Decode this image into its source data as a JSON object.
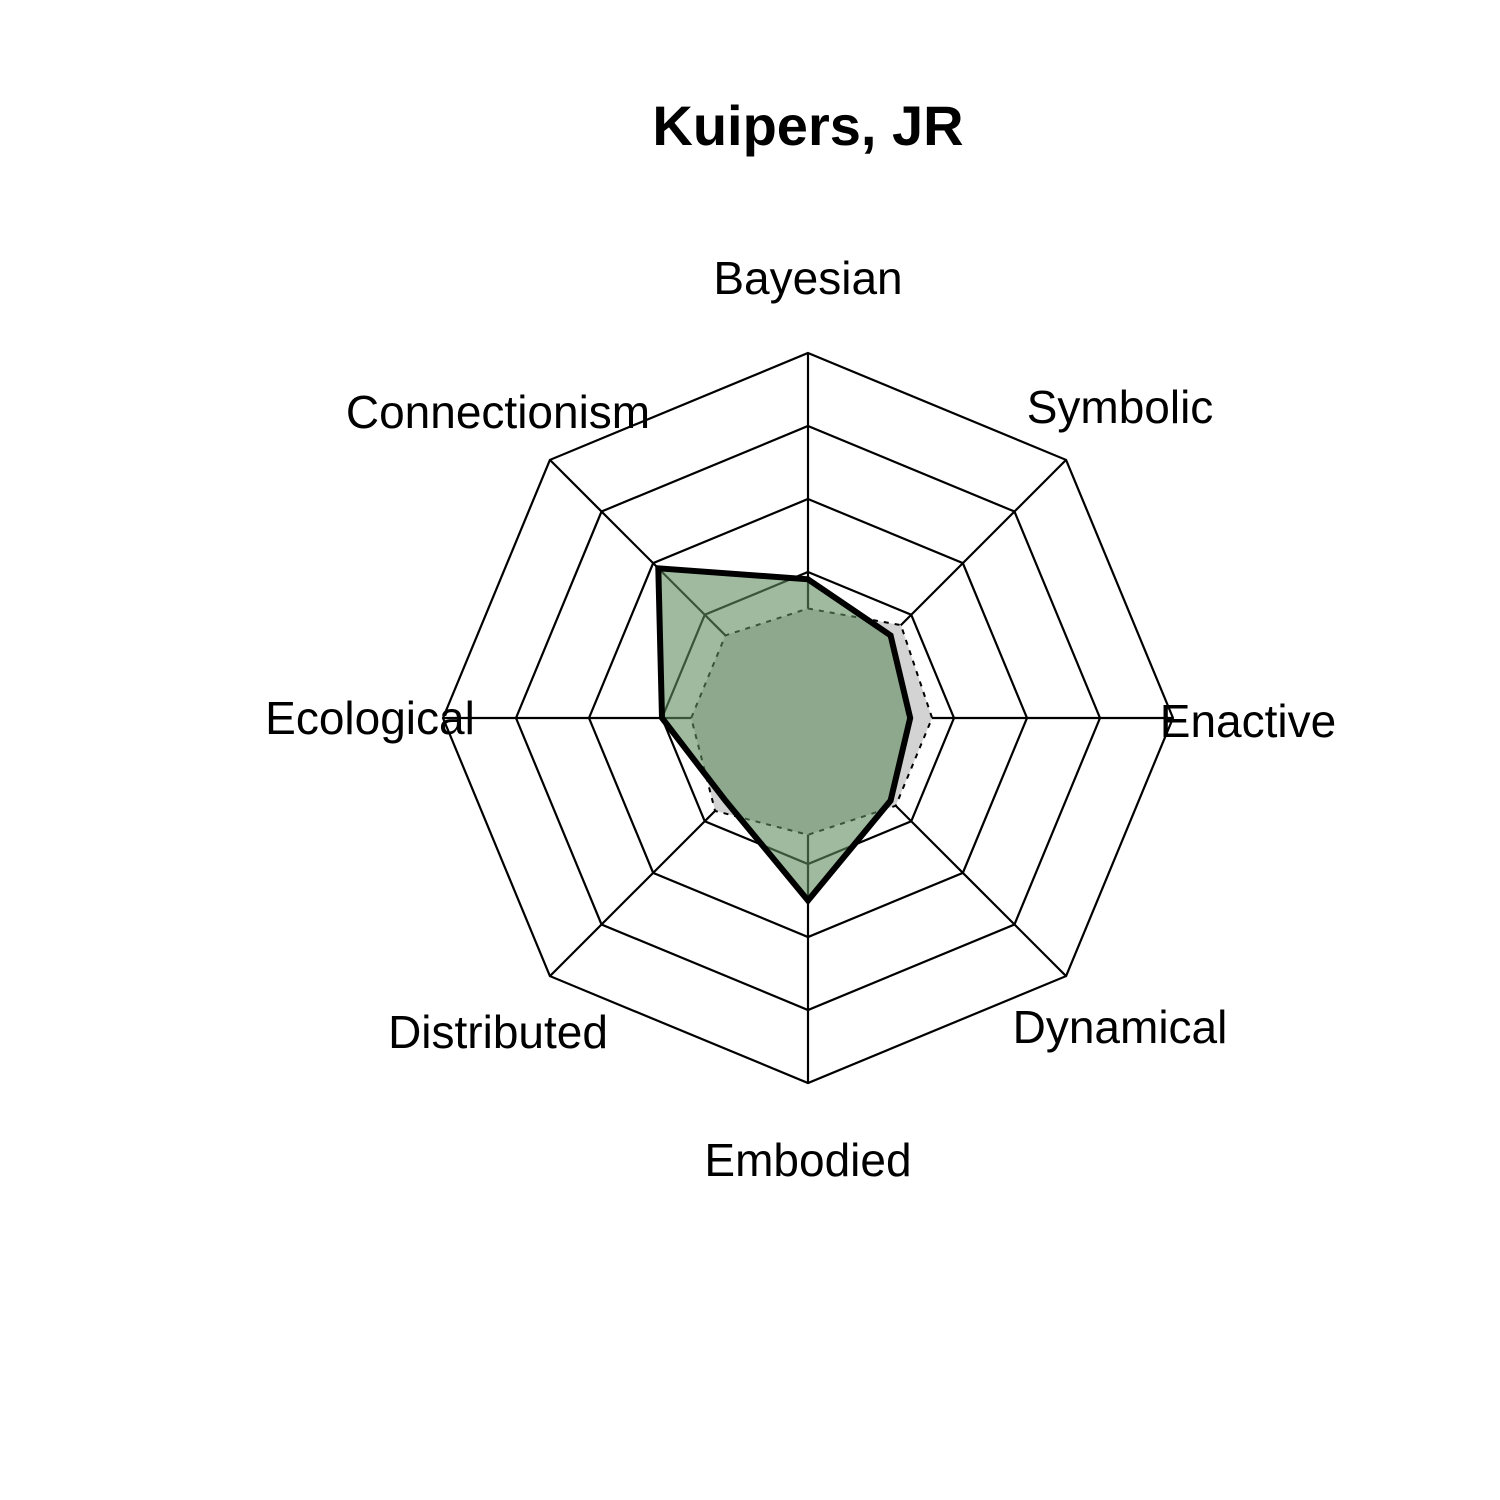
{
  "chart_data": {
    "type": "radar",
    "title": "Kuipers, JR",
    "axes": [
      "Bayesian",
      "Symbolic",
      "Enactive",
      "Dynamical",
      "Embodied",
      "Distributed",
      "Ecological",
      "Connectionism"
    ],
    "scale": {
      "min": 0,
      "max": 5,
      "rings": 5
    },
    "series": [
      {
        "values": [
          1.9,
          1.6,
          1.4,
          1.6,
          2.5,
          1.6,
          2.0,
          2.9
        ]
      },
      {
        "values": [
          1.5,
          1.8,
          1.7,
          1.7,
          1.6,
          1.8,
          1.6,
          1.6
        ]
      }
    ],
    "colors": {
      "subject_fill": "#5f8c5f",
      "reference_fill": "#d3d3d3",
      "grid": "#000000"
    }
  }
}
